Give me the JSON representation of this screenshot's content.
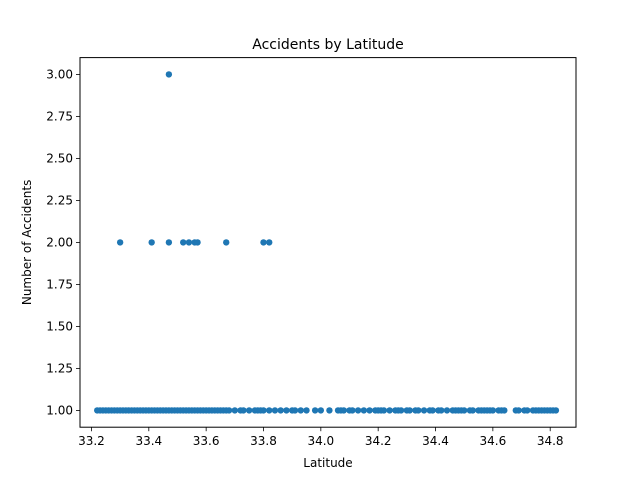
{
  "chart_data": {
    "type": "scatter",
    "title": "Accidents by Latitude",
    "xlabel": "Latitude",
    "ylabel": "Number of Accidents",
    "xlim": [
      33.16,
      34.89
    ],
    "ylim": [
      0.9,
      3.1
    ],
    "xticks": [
      "33.2",
      "33.4",
      "33.6",
      "33.8",
      "34.0",
      "34.2",
      "34.4",
      "34.6",
      "34.8"
    ],
    "yticks": [
      "1.00",
      "1.25",
      "1.50",
      "1.75",
      "2.00",
      "2.25",
      "2.50",
      "2.75",
      "3.00"
    ],
    "grid": false,
    "color": "#1f77b4",
    "points": [
      {
        "x": 33.47,
        "y": 3
      },
      {
        "x": 33.3,
        "y": 2
      },
      {
        "x": 33.41,
        "y": 2
      },
      {
        "x": 33.47,
        "y": 2
      },
      {
        "x": 33.52,
        "y": 2
      },
      {
        "x": 33.54,
        "y": 2
      },
      {
        "x": 33.56,
        "y": 2
      },
      {
        "x": 33.57,
        "y": 2
      },
      {
        "x": 33.67,
        "y": 2
      },
      {
        "x": 33.8,
        "y": 2
      },
      {
        "x": 33.82,
        "y": 2
      },
      {
        "x": 33.22,
        "y": 1
      },
      {
        "x": 33.23,
        "y": 1
      },
      {
        "x": 33.24,
        "y": 1
      },
      {
        "x": 33.25,
        "y": 1
      },
      {
        "x": 33.26,
        "y": 1
      },
      {
        "x": 33.27,
        "y": 1
      },
      {
        "x": 33.28,
        "y": 1
      },
      {
        "x": 33.29,
        "y": 1
      },
      {
        "x": 33.3,
        "y": 1
      },
      {
        "x": 33.31,
        "y": 1
      },
      {
        "x": 33.32,
        "y": 1
      },
      {
        "x": 33.33,
        "y": 1
      },
      {
        "x": 33.34,
        "y": 1
      },
      {
        "x": 33.35,
        "y": 1
      },
      {
        "x": 33.36,
        "y": 1
      },
      {
        "x": 33.37,
        "y": 1
      },
      {
        "x": 33.38,
        "y": 1
      },
      {
        "x": 33.39,
        "y": 1
      },
      {
        "x": 33.4,
        "y": 1
      },
      {
        "x": 33.41,
        "y": 1
      },
      {
        "x": 33.42,
        "y": 1
      },
      {
        "x": 33.43,
        "y": 1
      },
      {
        "x": 33.44,
        "y": 1
      },
      {
        "x": 33.45,
        "y": 1
      },
      {
        "x": 33.46,
        "y": 1
      },
      {
        "x": 33.47,
        "y": 1
      },
      {
        "x": 33.48,
        "y": 1
      },
      {
        "x": 33.49,
        "y": 1
      },
      {
        "x": 33.5,
        "y": 1
      },
      {
        "x": 33.51,
        "y": 1
      },
      {
        "x": 33.52,
        "y": 1
      },
      {
        "x": 33.53,
        "y": 1
      },
      {
        "x": 33.54,
        "y": 1
      },
      {
        "x": 33.55,
        "y": 1
      },
      {
        "x": 33.56,
        "y": 1
      },
      {
        "x": 33.57,
        "y": 1
      },
      {
        "x": 33.58,
        "y": 1
      },
      {
        "x": 33.59,
        "y": 1
      },
      {
        "x": 33.6,
        "y": 1
      },
      {
        "x": 33.61,
        "y": 1
      },
      {
        "x": 33.62,
        "y": 1
      },
      {
        "x": 33.63,
        "y": 1
      },
      {
        "x": 33.64,
        "y": 1
      },
      {
        "x": 33.65,
        "y": 1
      },
      {
        "x": 33.66,
        "y": 1
      },
      {
        "x": 33.67,
        "y": 1
      },
      {
        "x": 33.68,
        "y": 1
      },
      {
        "x": 33.7,
        "y": 1
      },
      {
        "x": 33.72,
        "y": 1
      },
      {
        "x": 33.73,
        "y": 1
      },
      {
        "x": 33.75,
        "y": 1
      },
      {
        "x": 33.77,
        "y": 1
      },
      {
        "x": 33.78,
        "y": 1
      },
      {
        "x": 33.79,
        "y": 1
      },
      {
        "x": 33.8,
        "y": 1
      },
      {
        "x": 33.82,
        "y": 1
      },
      {
        "x": 33.84,
        "y": 1
      },
      {
        "x": 33.86,
        "y": 1
      },
      {
        "x": 33.88,
        "y": 1
      },
      {
        "x": 33.9,
        "y": 1
      },
      {
        "x": 33.91,
        "y": 1
      },
      {
        "x": 33.93,
        "y": 1
      },
      {
        "x": 33.95,
        "y": 1
      },
      {
        "x": 33.98,
        "y": 1
      },
      {
        "x": 34.0,
        "y": 1
      },
      {
        "x": 34.03,
        "y": 1
      },
      {
        "x": 34.06,
        "y": 1
      },
      {
        "x": 34.07,
        "y": 1
      },
      {
        "x": 34.08,
        "y": 1
      },
      {
        "x": 34.1,
        "y": 1
      },
      {
        "x": 34.11,
        "y": 1
      },
      {
        "x": 34.13,
        "y": 1
      },
      {
        "x": 34.15,
        "y": 1
      },
      {
        "x": 34.17,
        "y": 1
      },
      {
        "x": 34.19,
        "y": 1
      },
      {
        "x": 34.2,
        "y": 1
      },
      {
        "x": 34.21,
        "y": 1
      },
      {
        "x": 34.22,
        "y": 1
      },
      {
        "x": 34.24,
        "y": 1
      },
      {
        "x": 34.26,
        "y": 1
      },
      {
        "x": 34.27,
        "y": 1
      },
      {
        "x": 34.28,
        "y": 1
      },
      {
        "x": 34.3,
        "y": 1
      },
      {
        "x": 34.31,
        "y": 1
      },
      {
        "x": 34.33,
        "y": 1
      },
      {
        "x": 34.34,
        "y": 1
      },
      {
        "x": 34.36,
        "y": 1
      },
      {
        "x": 34.38,
        "y": 1
      },
      {
        "x": 34.39,
        "y": 1
      },
      {
        "x": 34.41,
        "y": 1
      },
      {
        "x": 34.42,
        "y": 1
      },
      {
        "x": 34.44,
        "y": 1
      },
      {
        "x": 34.46,
        "y": 1
      },
      {
        "x": 34.47,
        "y": 1
      },
      {
        "x": 34.48,
        "y": 1
      },
      {
        "x": 34.49,
        "y": 1
      },
      {
        "x": 34.5,
        "y": 1
      },
      {
        "x": 34.52,
        "y": 1
      },
      {
        "x": 34.53,
        "y": 1
      },
      {
        "x": 34.55,
        "y": 1
      },
      {
        "x": 34.56,
        "y": 1
      },
      {
        "x": 34.57,
        "y": 1
      },
      {
        "x": 34.58,
        "y": 1
      },
      {
        "x": 34.59,
        "y": 1
      },
      {
        "x": 34.6,
        "y": 1
      },
      {
        "x": 34.62,
        "y": 1
      },
      {
        "x": 34.63,
        "y": 1
      },
      {
        "x": 34.64,
        "y": 1
      },
      {
        "x": 34.68,
        "y": 1
      },
      {
        "x": 34.69,
        "y": 1
      },
      {
        "x": 34.71,
        "y": 1
      },
      {
        "x": 34.72,
        "y": 1
      },
      {
        "x": 34.74,
        "y": 1
      },
      {
        "x": 34.75,
        "y": 1
      },
      {
        "x": 34.76,
        "y": 1
      },
      {
        "x": 34.77,
        "y": 1
      },
      {
        "x": 34.78,
        "y": 1
      },
      {
        "x": 34.79,
        "y": 1
      },
      {
        "x": 34.8,
        "y": 1
      },
      {
        "x": 34.81,
        "y": 1
      },
      {
        "x": 34.82,
        "y": 1
      }
    ]
  }
}
